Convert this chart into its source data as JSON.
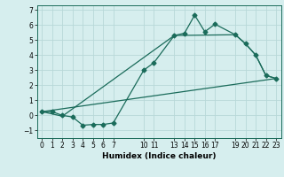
{
  "xlabel": "Humidex (Indice chaleur)",
  "bg_color": "#d6eeee",
  "grid_color": "#b8d8d8",
  "line_color": "#1a6b5a",
  "xlim": [
    -0.5,
    23.5
  ],
  "ylim": [
    -1.5,
    7.3
  ],
  "xticks": [
    0,
    1,
    2,
    3,
    4,
    5,
    6,
    7,
    10,
    11,
    13,
    14,
    15,
    16,
    17,
    19,
    20,
    21,
    22,
    23
  ],
  "yticks": [
    -1,
    0,
    1,
    2,
    3,
    4,
    5,
    6,
    7
  ],
  "line1_x": [
    0,
    1,
    2,
    3,
    4,
    5,
    6,
    7,
    10,
    11,
    13,
    14,
    15,
    16,
    17,
    19,
    20,
    21,
    22,
    23
  ],
  "line1_y": [
    0.25,
    0.25,
    0.0,
    -0.1,
    -0.65,
    -0.6,
    -0.6,
    -0.5,
    3.0,
    3.5,
    5.3,
    5.45,
    6.65,
    5.55,
    6.05,
    5.35,
    4.75,
    4.0,
    2.65,
    2.45
  ],
  "line2_x": [
    0,
    2,
    13,
    19,
    20,
    21,
    22,
    23
  ],
  "line2_y": [
    0.25,
    -0.05,
    5.3,
    5.35,
    4.75,
    4.0,
    2.65,
    2.45
  ],
  "line3_x": [
    0,
    23
  ],
  "line3_y": [
    0.25,
    2.45
  ],
  "xlabel_fontsize": 6.5,
  "tick_fontsize": 5.5,
  "linewidth": 0.9,
  "markersize": 2.5
}
